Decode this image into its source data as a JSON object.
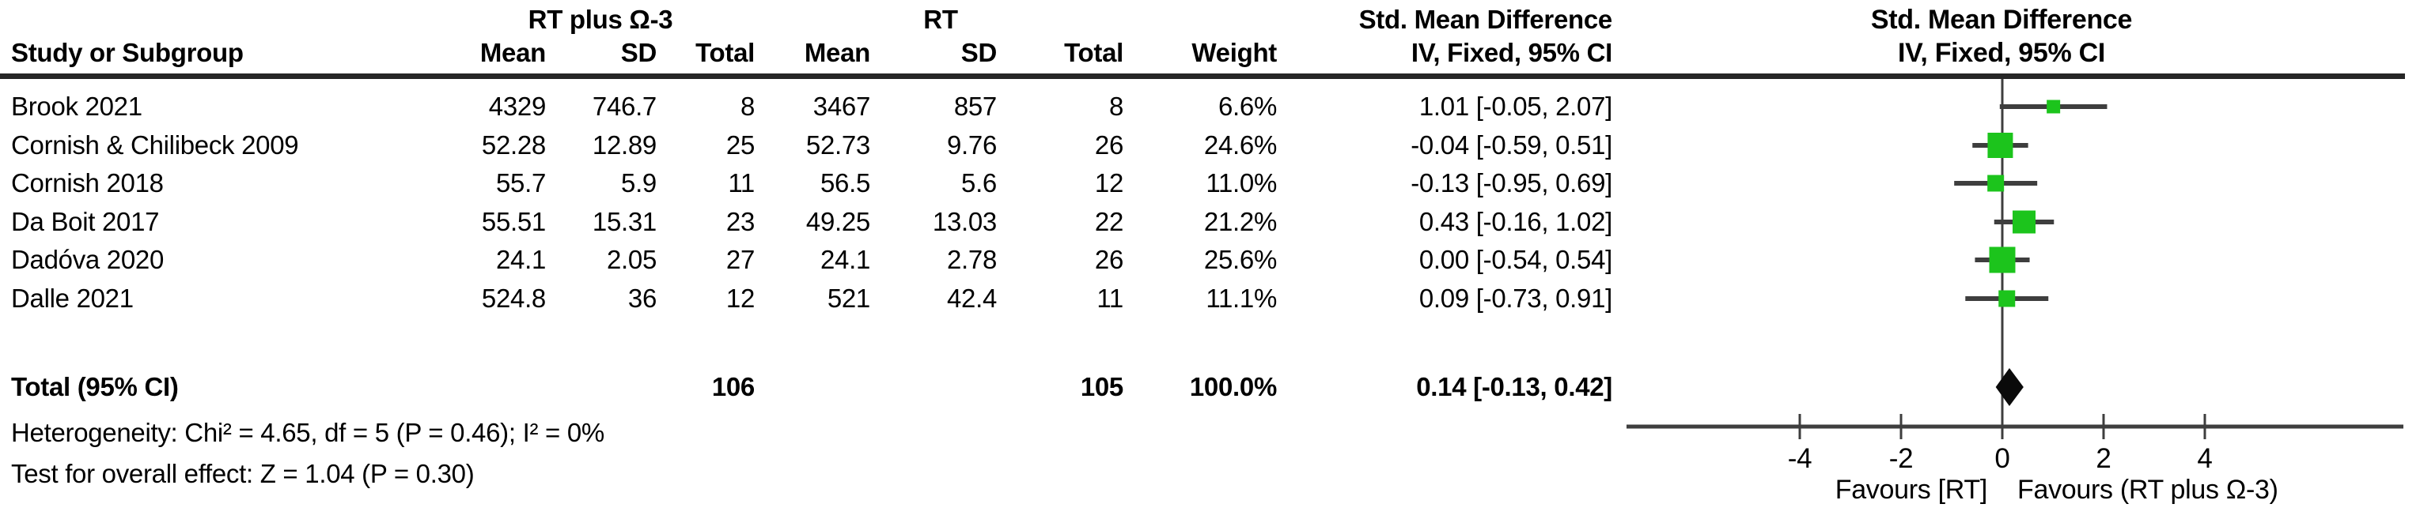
{
  "figure": {
    "headers": {
      "group1": "RT plus Ω-3",
      "group2": "RT",
      "study_col": "Study or Subgroup",
      "mean": "Mean",
      "sd": "SD",
      "total": "Total",
      "weight": "Weight",
      "smd_line1": "Std. Mean Difference",
      "smd_line2": "IV, Fixed, 95% CI",
      "plot_line1": "Std. Mean Difference",
      "plot_line2": "IV, Fixed, 95% CI"
    },
    "rows": [
      {
        "study": "Brook 2021",
        "mean1": "4329",
        "sd1": "746.7",
        "total1": "8",
        "mean2": "3467",
        "sd2": "857",
        "total2": "8",
        "weight": "6.6%",
        "ci": "1.01 [-0.05, 2.07]"
      },
      {
        "study": "Cornish & Chilibeck 2009",
        "mean1": "52.28",
        "sd1": "12.89",
        "total1": "25",
        "mean2": "52.73",
        "sd2": "9.76",
        "total2": "26",
        "weight": "24.6%",
        "ci": "-0.04 [-0.59, 0.51]"
      },
      {
        "study": "Cornish 2018",
        "mean1": "55.7",
        "sd1": "5.9",
        "total1": "11",
        "mean2": "56.5",
        "sd2": "5.6",
        "total2": "12",
        "weight": "11.0%",
        "ci": "-0.13 [-0.95, 0.69]"
      },
      {
        "study": "Da Boit 2017",
        "mean1": "55.51",
        "sd1": "15.31",
        "total1": "23",
        "mean2": "49.25",
        "sd2": "13.03",
        "total2": "22",
        "weight": "21.2%",
        "ci": "0.43 [-0.16, 1.02]"
      },
      {
        "study": "Dadóva 2020",
        "mean1": "24.1",
        "sd1": "2.05",
        "total1": "27",
        "mean2": "24.1",
        "sd2": "2.78",
        "total2": "26",
        "weight": "25.6%",
        "ci": "0.00 [-0.54, 0.54]"
      },
      {
        "study": "Dalle 2021",
        "mean1": "524.8",
        "sd1": "36",
        "total1": "12",
        "mean2": "521",
        "sd2": "42.4",
        "total2": "11",
        "weight": "11.1%",
        "ci": "0.09 [-0.73, 0.91]"
      }
    ],
    "total_row": {
      "label": "Total (95% CI)",
      "total1": "106",
      "total2": "105",
      "weight": "100.0%",
      "ci": "0.14 [-0.13, 0.42]"
    },
    "heterogeneity": "Heterogeneity: Chi² = 4.65, df = 5 (P = 0.46); I² = 0%",
    "overall_effect": "Test for overall effect: Z = 1.04 (P = 0.30)"
  },
  "chart_data": {
    "type": "scatter",
    "subtype": "forest_plot",
    "effect_measure": "Std. Mean Difference (IV, Fixed, 95% CI)",
    "studies": [
      {
        "name": "Brook 2021",
        "est": 1.01,
        "lo": -0.05,
        "hi": 2.07,
        "weight_pct": 6.6
      },
      {
        "name": "Cornish & Chilibeck 2009",
        "est": -0.04,
        "lo": -0.59,
        "hi": 0.51,
        "weight_pct": 24.6
      },
      {
        "name": "Cornish 2018",
        "est": -0.13,
        "lo": -0.95,
        "hi": 0.69,
        "weight_pct": 11.0
      },
      {
        "name": "Da Boit 2017",
        "est": 0.43,
        "lo": -0.16,
        "hi": 1.02,
        "weight_pct": 21.2
      },
      {
        "name": "Dadóva 2020",
        "est": 0.0,
        "lo": -0.54,
        "hi": 0.54,
        "weight_pct": 25.6
      },
      {
        "name": "Dalle 2021",
        "est": 0.09,
        "lo": -0.73,
        "hi": 0.91,
        "weight_pct": 11.1
      }
    ],
    "overall": {
      "label": "Total (95% CI)",
      "est": 0.14,
      "lo": -0.13,
      "hi": 0.42,
      "weight_pct": 100.0
    },
    "x_ticks": [
      -4,
      -2,
      0,
      2,
      4
    ],
    "xlim": [
      -7.4,
      7.9
    ],
    "grid": false,
    "axis_label_left": "Favours [RT]",
    "axis_label_right": "Favours (RT plus Ω-3)",
    "marker_color": "#1CC41C",
    "line_color": "#3E3E3E",
    "diamond_color": "#0A0A0A"
  }
}
